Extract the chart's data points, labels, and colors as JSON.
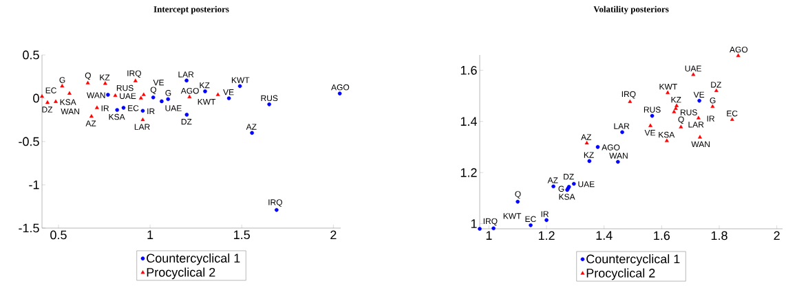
{
  "chart_data": [
    {
      "type": "scatter",
      "title": "Intercept posteriors",
      "xlim": [
        0.41,
        2.04
      ],
      "ylim": [
        -1.5,
        0.5
      ],
      "xticks": [
        0.5,
        1,
        1.5,
        2
      ],
      "yticks": [
        -1.5,
        -1,
        -0.5,
        0,
        0.5
      ],
      "legend": "bottom",
      "series": [
        {
          "name": "Countercyclical 1",
          "color": "#0000ff",
          "marker": "circle",
          "x": [
            0.77,
            0.82,
            0.855,
            0.96,
            1.017,
            1.063,
            1.098,
            1.199,
            1.2,
            1.3,
            1.43,
            1.49,
            1.65,
            1.556,
            1.69,
            2.035
          ],
          "values": [
            0.04,
            -0.135,
            -0.11,
            -0.145,
            0.01,
            -0.035,
            -0.01,
            0.205,
            -0.19,
            0.08,
            0.0,
            0.14,
            -0.07,
            -0.4,
            -1.29,
            0.055
          ]
        },
        {
          "name": "Procyclical 2",
          "color": "#ff0000",
          "marker": "triangle",
          "x": [
            0.41,
            0.44,
            0.485,
            0.52,
            0.56,
            0.66,
            0.68,
            0.71,
            0.755,
            0.81,
            0.92,
            0.95,
            0.965,
            0.96,
            1.215,
            1.37
          ],
          "values": [
            0.02,
            -0.05,
            -0.04,
            0.14,
            0.055,
            0.175,
            -0.21,
            -0.11,
            0.17,
            0.03,
            0.2,
            0.0,
            0.04,
            -0.25,
            0.015,
            0.04
          ]
        }
      ],
      "annotations": [
        {
          "text": "WAN",
          "x": 0.77,
          "y": 0.04
        },
        {
          "text": "KSA",
          "x": 0.82,
          "y": -0.135
        },
        {
          "text": "EC",
          "x": 0.855,
          "y": -0.11
        },
        {
          "text": "IR",
          "x": 0.96,
          "y": -0.145
        },
        {
          "text": "Q",
          "x": 1.017,
          "y": 0.01
        },
        {
          "text": "UAE",
          "x": 1.063,
          "y": -0.035
        },
        {
          "text": "G",
          "x": 1.098,
          "y": -0.01
        },
        {
          "text": "LAR",
          "x": 1.199,
          "y": 0.205
        },
        {
          "text": "DZ",
          "x": 1.2,
          "y": -0.19
        },
        {
          "text": "KZ",
          "x": 1.3,
          "y": 0.08
        },
        {
          "text": "VE",
          "x": 1.43,
          "y": 0.0
        },
        {
          "text": "KWT",
          "x": 1.49,
          "y": 0.14
        },
        {
          "text": "RUS",
          "x": 1.65,
          "y": -0.07
        },
        {
          "text": "AZ",
          "x": 1.556,
          "y": -0.4
        },
        {
          "text": "IRQ",
          "x": 1.69,
          "y": -1.29
        },
        {
          "text": "AGO",
          "x": 2.035,
          "y": 0.055
        },
        {
          "text": "EC",
          "x": 0.41,
          "y": 0.02
        },
        {
          "text": "DZ",
          "x": 0.44,
          "y": -0.05
        },
        {
          "text": "KSA",
          "x": 0.485,
          "y": -0.04
        },
        {
          "text": "G",
          "x": 0.52,
          "y": 0.14
        },
        {
          "text": "WAN",
          "x": 0.56,
          "y": 0.055
        },
        {
          "text": "Q",
          "x": 0.66,
          "y": 0.175
        },
        {
          "text": "AZ",
          "x": 0.68,
          "y": -0.21
        },
        {
          "text": "IR",
          "x": 0.71,
          "y": -0.11
        },
        {
          "text": "KZ",
          "x": 0.755,
          "y": 0.17
        },
        {
          "text": "UAE",
          "x": 0.81,
          "y": 0.03
        },
        {
          "text": "IRQ",
          "x": 0.92,
          "y": 0.2
        },
        {
          "text": "RUS",
          "x": 0.95,
          "y": 0.0
        },
        {
          "text": "VE",
          "x": 0.965,
          "y": 0.04
        },
        {
          "text": "LAR",
          "x": 0.96,
          "y": -0.25
        },
        {
          "text": "AGO",
          "x": 1.215,
          "y": 0.015
        },
        {
          "text": "KWT",
          "x": 1.37,
          "y": 0.04
        }
      ]
    },
    {
      "type": "scatter",
      "title": "Volatility posteriors",
      "xlim": [
        0.968,
        2.02
      ],
      "ylim": [
        0.98,
        1.66
      ],
      "xticks": [
        1,
        1.2,
        1.4,
        1.6,
        1.8,
        2
      ],
      "yticks": [
        1,
        1.2,
        1.4,
        1.6
      ],
      "legend": "bottom",
      "series": [
        {
          "name": "Countercyclical 1",
          "color": "#0000ff",
          "marker": "circle",
          "x": [
            0.968,
            1.016,
            1.145,
            1.2,
            1.1,
            1.224,
            1.272,
            1.275,
            1.278,
            1.295,
            1.349,
            1.378,
            1.448,
            1.463,
            1.567,
            1.731
          ],
          "values": [
            0.98,
            0.982,
            0.994,
            1.014,
            1.086,
            1.146,
            1.132,
            1.138,
            1.144,
            1.156,
            1.245,
            1.3,
            1.242,
            1.358,
            1.422,
            1.481
          ]
        },
        {
          "name": "Procyclical 2",
          "color": "#ff0000",
          "marker": "triangle",
          "x": [
            1.34,
            1.49,
            1.561,
            1.618,
            1.621,
            1.667,
            1.643,
            1.652,
            1.649,
            1.71,
            1.728,
            1.733,
            1.79,
            1.777,
            1.845,
            1.866
          ],
          "values": [
            1.315,
            1.477,
            1.383,
            1.324,
            1.512,
            1.378,
            1.437,
            1.461,
            1.45,
            1.583,
            1.413,
            1.338,
            1.52,
            1.458,
            1.407,
            1.657
          ]
        }
      ],
      "annotations": [
        {
          "text": "IRQ",
          "x": 0.968,
          "y": 0.98
        },
        {
          "text": "KWT",
          "x": 1.016,
          "y": 0.982
        },
        {
          "text": "EC",
          "x": 1.145,
          "y": 0.994
        },
        {
          "text": "IR",
          "x": 1.2,
          "y": 1.014
        },
        {
          "text": "Q",
          "x": 1.1,
          "y": 1.086
        },
        {
          "text": "AZ",
          "x": 1.224,
          "y": 1.146
        },
        {
          "text": "KSA",
          "x": 1.272,
          "y": 1.132
        },
        {
          "text": "G",
          "x": 1.275,
          "y": 1.138
        },
        {
          "text": "DZ",
          "x": 1.278,
          "y": 1.144
        },
        {
          "text": "UAE",
          "x": 1.295,
          "y": 1.156
        },
        {
          "text": "KZ",
          "x": 1.349,
          "y": 1.245
        },
        {
          "text": "AGO",
          "x": 1.378,
          "y": 1.3
        },
        {
          "text": "WAN",
          "x": 1.448,
          "y": 1.242
        },
        {
          "text": "LAR",
          "x": 1.463,
          "y": 1.358
        },
        {
          "text": "RUS",
          "x": 1.567,
          "y": 1.422
        },
        {
          "text": "VE",
          "x": 1.731,
          "y": 1.481
        },
        {
          "text": "AZ",
          "x": 1.34,
          "y": 1.315
        },
        {
          "text": "IRQ",
          "x": 1.49,
          "y": 1.477
        },
        {
          "text": "VE",
          "x": 1.561,
          "y": 1.383
        },
        {
          "text": "KSA",
          "x": 1.618,
          "y": 1.324
        },
        {
          "text": "KWT",
          "x": 1.621,
          "y": 1.512
        },
        {
          "text": "Q",
          "x": 1.667,
          "y": 1.378
        },
        {
          "text": "RUS",
          "x": 1.643,
          "y": 1.437
        },
        {
          "text": "KZ",
          "x": 1.652,
          "y": 1.461
        },
        {
          "text": "LAR",
          "x": 1.649,
          "y": 1.45
        },
        {
          "text": "UAE",
          "x": 1.71,
          "y": 1.583
        },
        {
          "text": "IR",
          "x": 1.728,
          "y": 1.413
        },
        {
          "text": "WAN",
          "x": 1.733,
          "y": 1.338
        },
        {
          "text": "DZ",
          "x": 1.79,
          "y": 1.52
        },
        {
          "text": "G",
          "x": 1.777,
          "y": 1.458
        },
        {
          "text": "EC",
          "x": 1.845,
          "y": 1.407
        },
        {
          "text": "AGO",
          "x": 1.866,
          "y": 1.657
        }
      ]
    }
  ]
}
